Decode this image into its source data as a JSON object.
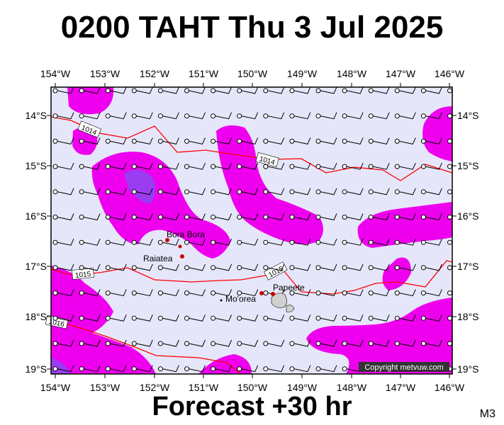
{
  "header": {
    "title": "0200 TAHT Thu 3 Jul 2025"
  },
  "footer": {
    "forecast": "Forecast +30 hr",
    "code": "M3"
  },
  "map": {
    "lon_labels": [
      "154°W",
      "153°W",
      "152°W",
      "151°W",
      "150°W",
      "149°W",
      "148°W",
      "147°W",
      "146°W"
    ],
    "lat_labels": [
      "14°S",
      "15°S",
      "16°S",
      "17°S",
      "18°S",
      "19°S"
    ],
    "isobar_labels": [
      "1014",
      "1014",
      "1015",
      "1015",
      "1016"
    ],
    "places": [
      "Bora Bora",
      "Raiatea",
      "Mo'orea",
      "Papeete"
    ],
    "copyright": "Copyright metvuw.com",
    "colors": {
      "background": "#e6e6fa",
      "rain_light": "#ee00ee",
      "rain_heavy": "#9a3cf0",
      "isobar": "#ff0000",
      "land": "#d0d0d0"
    }
  }
}
